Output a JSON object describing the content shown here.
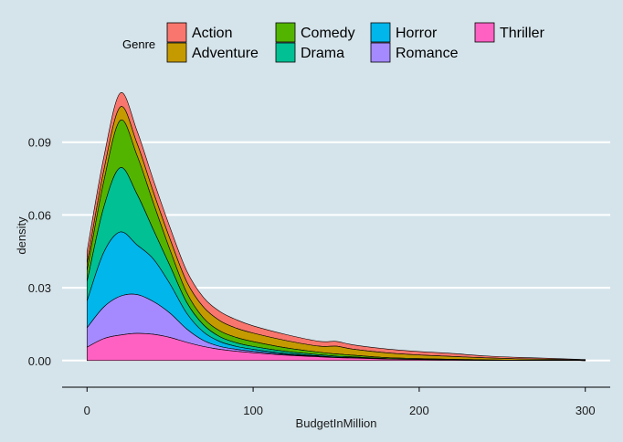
{
  "chart_data": {
    "type": "area",
    "stacked": true,
    "xlabel": "BudgetInMillion",
    "ylabel": "density",
    "xlim": [
      -15,
      315
    ],
    "ylim": [
      -0.011,
      0.114
    ],
    "x_ticks": [
      0,
      100,
      200,
      300
    ],
    "x_tick_labels": [
      "0",
      "100",
      "200",
      "300"
    ],
    "y_ticks": [
      0.0,
      0.03,
      0.06,
      0.09
    ],
    "y_tick_labels": [
      "0.00",
      "0.03",
      "0.06",
      "0.09"
    ],
    "grid": "horizontal",
    "legend": {
      "title": "Genre",
      "position": "top"
    },
    "x": [
      0,
      10,
      20,
      30,
      40,
      50,
      60,
      70,
      80,
      90,
      100,
      120,
      140,
      150,
      160,
      180,
      200,
      220,
      240,
      260,
      280,
      300
    ],
    "series": [
      {
        "name": "Thriller",
        "color": "#ff61c3",
        "values": [
          0.0055,
          0.009,
          0.0105,
          0.0112,
          0.0108,
          0.0095,
          0.0075,
          0.0058,
          0.0046,
          0.0038,
          0.0032,
          0.0022,
          0.0015,
          0.0012,
          0.001,
          0.0006,
          0.0004,
          0.0003,
          0.0002,
          0.0001,
          0.0001,
          0.0
        ]
      },
      {
        "name": "Romance",
        "color": "#a58aff",
        "values": [
          0.008,
          0.013,
          0.016,
          0.016,
          0.0135,
          0.01,
          0.0055,
          0.0025,
          0.0012,
          0.0008,
          0.0006,
          0.0003,
          0.0002,
          0.0001,
          0.0001,
          0.0,
          0.0,
          0.0,
          0.0,
          0.0,
          0.0,
          0.0
        ]
      },
      {
        "name": "Horror",
        "color": "#00b6eb",
        "values": [
          0.011,
          0.0225,
          0.0265,
          0.0205,
          0.0175,
          0.012,
          0.0065,
          0.0035,
          0.002,
          0.0012,
          0.0008,
          0.0004,
          0.0002,
          0.0001,
          0.0001,
          0.0,
          0.0,
          0.0,
          0.0,
          0.0,
          0.0,
          0.0
        ]
      },
      {
        "name": "Drama",
        "color": "#00c094",
        "values": [
          0.008,
          0.0185,
          0.0265,
          0.021,
          0.012,
          0.0075,
          0.0045,
          0.003,
          0.002,
          0.0015,
          0.0012,
          0.0008,
          0.0005,
          0.0004,
          0.0003,
          0.0002,
          0.0001,
          0.0,
          0.0,
          0.0,
          0.0,
          0.0
        ]
      },
      {
        "name": "Comedy",
        "color": "#53b400",
        "values": [
          0.0045,
          0.0105,
          0.0195,
          0.016,
          0.011,
          0.0065,
          0.004,
          0.0028,
          0.0024,
          0.0022,
          0.002,
          0.0015,
          0.001,
          0.0009,
          0.0007,
          0.0004,
          0.0003,
          0.0002,
          0.0001,
          0.0,
          0.0,
          0.0
        ]
      },
      {
        "name": "Adventure",
        "color": "#c49a00",
        "values": [
          0.003,
          0.0045,
          0.0055,
          0.005,
          0.0045,
          0.0045,
          0.0045,
          0.0045,
          0.0042,
          0.0038,
          0.0035,
          0.003,
          0.0025,
          0.0032,
          0.0025,
          0.002,
          0.0015,
          0.0012,
          0.0008,
          0.0006,
          0.0004,
          0.0002
        ]
      },
      {
        "name": "Action",
        "color": "#f8766d",
        "values": [
          0.005,
          0.0055,
          0.0058,
          0.0052,
          0.005,
          0.0048,
          0.0045,
          0.004,
          0.0038,
          0.0035,
          0.003,
          0.0025,
          0.002,
          0.002,
          0.0018,
          0.0016,
          0.0014,
          0.0012,
          0.0008,
          0.0006,
          0.0004,
          0.0002
        ]
      }
    ],
    "legend_order": [
      "Action",
      "Adventure",
      "Comedy",
      "Drama",
      "Horror",
      "Romance",
      "Thriller"
    ]
  }
}
